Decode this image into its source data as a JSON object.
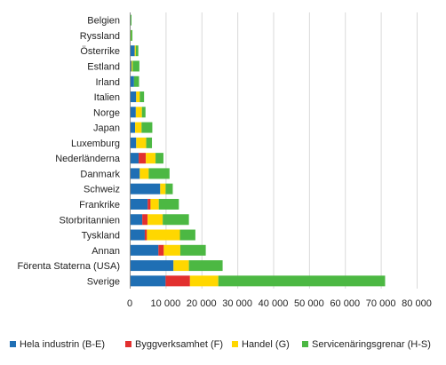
{
  "chart_data": {
    "type": "bar",
    "orientation": "horizontal",
    "stacked": true,
    "title": "",
    "xlabel": "",
    "ylabel": "",
    "xlim": [
      0,
      80000
    ],
    "x_ticks": [
      0,
      10000,
      20000,
      30000,
      40000,
      50000,
      60000,
      70000,
      80000
    ],
    "x_tick_labels": [
      "0",
      "10 000",
      "20 000",
      "30 000",
      "40 000",
      "50 000",
      "60 000",
      "70 000",
      "80 000"
    ],
    "grid": "vertical",
    "legend_position": "bottom",
    "categories": [
      "Belgien",
      "Ryssland",
      "Österrike",
      "Estland",
      "Irland",
      "Italien",
      "Norge",
      "Japan",
      "Luxemburg",
      "Nederländerna",
      "Danmark",
      "Schweiz",
      "Frankrike",
      "Storbritannien",
      "Tyskland",
      "Annan",
      "Förenta Staterna (USA)",
      "Sverige"
    ],
    "series": [
      {
        "name": "Hela industrin (B-E)",
        "color": "#1f6fb4",
        "values": [
          100,
          150,
          1400,
          500,
          1200,
          1800,
          1700,
          1500,
          1800,
          2500,
          2800,
          8500,
          5000,
          3500,
          4200,
          8000,
          12200,
          10000
        ]
      },
      {
        "name": "Byggverksamhet (F)",
        "color": "#e2302f",
        "values": [
          0,
          0,
          0,
          0,
          0,
          0,
          0,
          0,
          0,
          2000,
          0,
          0,
          800,
          1500,
          600,
          1500,
          0,
          6800
        ]
      },
      {
        "name": "Handel (G)",
        "color": "#ffd700",
        "values": [
          0,
          150,
          300,
          300,
          0,
          1000,
          1700,
          1800,
          2800,
          2700,
          2500,
          1500,
          2300,
          4200,
          9200,
          4600,
          4300,
          7900
        ]
      },
      {
        "name": "Servicenäringsgrenar (H-S)",
        "color": "#4cb843",
        "values": [
          400,
          450,
          700,
          1900,
          1400,
          1200,
          1000,
          3000,
          1600,
          2200,
          5800,
          2000,
          5600,
          7300,
          4300,
          7100,
          9400,
          46500
        ]
      }
    ]
  }
}
